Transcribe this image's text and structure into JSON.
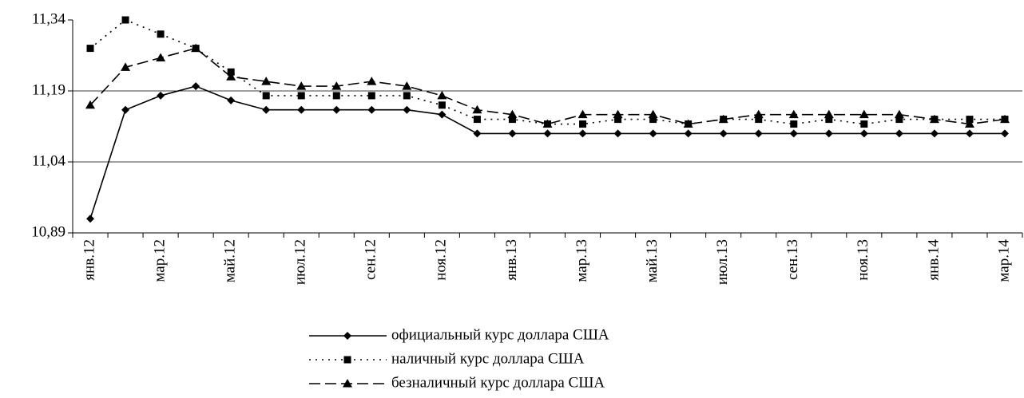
{
  "chart_data": {
    "type": "line",
    "categories": [
      "янв.12",
      null,
      "мар.12",
      null,
      "май.12",
      null,
      "июл.12",
      null,
      "сен.12",
      null,
      "ноя.12",
      null,
      "янв.13",
      null,
      "мар.13",
      null,
      "май.13",
      null,
      "июл.13",
      null,
      "сен.13",
      null,
      "ноя.13",
      null,
      "янв.14",
      null,
      "мар.14"
    ],
    "series": [
      {
        "name": "официальный курс доллара США",
        "color": "#000000",
        "dash": "solid",
        "marker": "diamond",
        "values": [
          10.92,
          11.15,
          11.18,
          11.2,
          11.17,
          11.15,
          11.15,
          11.15,
          11.15,
          11.15,
          11.14,
          11.1,
          11.1,
          11.1,
          11.1,
          11.1,
          11.1,
          11.1,
          11.1,
          11.1,
          11.1,
          11.1,
          11.1,
          11.1,
          11.1,
          11.1,
          11.1
        ]
      },
      {
        "name": "наличный курс доллара США",
        "color": "#000000",
        "dash": "dotted",
        "marker": "square",
        "values": [
          11.28,
          11.34,
          11.31,
          11.28,
          11.23,
          11.18,
          11.18,
          11.18,
          11.18,
          11.18,
          11.16,
          11.13,
          11.13,
          11.12,
          11.12,
          11.13,
          11.13,
          11.12,
          11.13,
          11.13,
          11.12,
          11.13,
          11.12,
          11.13,
          11.13,
          11.13,
          11.13
        ]
      },
      {
        "name": "безналичный курс доллара США",
        "color": "#000000",
        "dash": "dashed",
        "marker": "triangle",
        "values": [
          11.16,
          11.24,
          11.26,
          11.28,
          11.22,
          11.21,
          11.2,
          11.2,
          11.21,
          11.2,
          11.18,
          11.15,
          11.14,
          11.12,
          11.14,
          11.14,
          11.14,
          11.12,
          11.13,
          11.14,
          11.14,
          11.14,
          11.14,
          11.14,
          11.13,
          11.12,
          11.13
        ]
      }
    ],
    "ylim": [
      10.89,
      11.34
    ],
    "yticks": [
      {
        "value": 10.89,
        "label": "10,89"
      },
      {
        "value": 11.04,
        "label": "11,04"
      },
      {
        "value": 11.19,
        "label": "11,19"
      },
      {
        "value": 11.34,
        "label": "11,34"
      }
    ],
    "grid": true,
    "legend": "bottom"
  }
}
